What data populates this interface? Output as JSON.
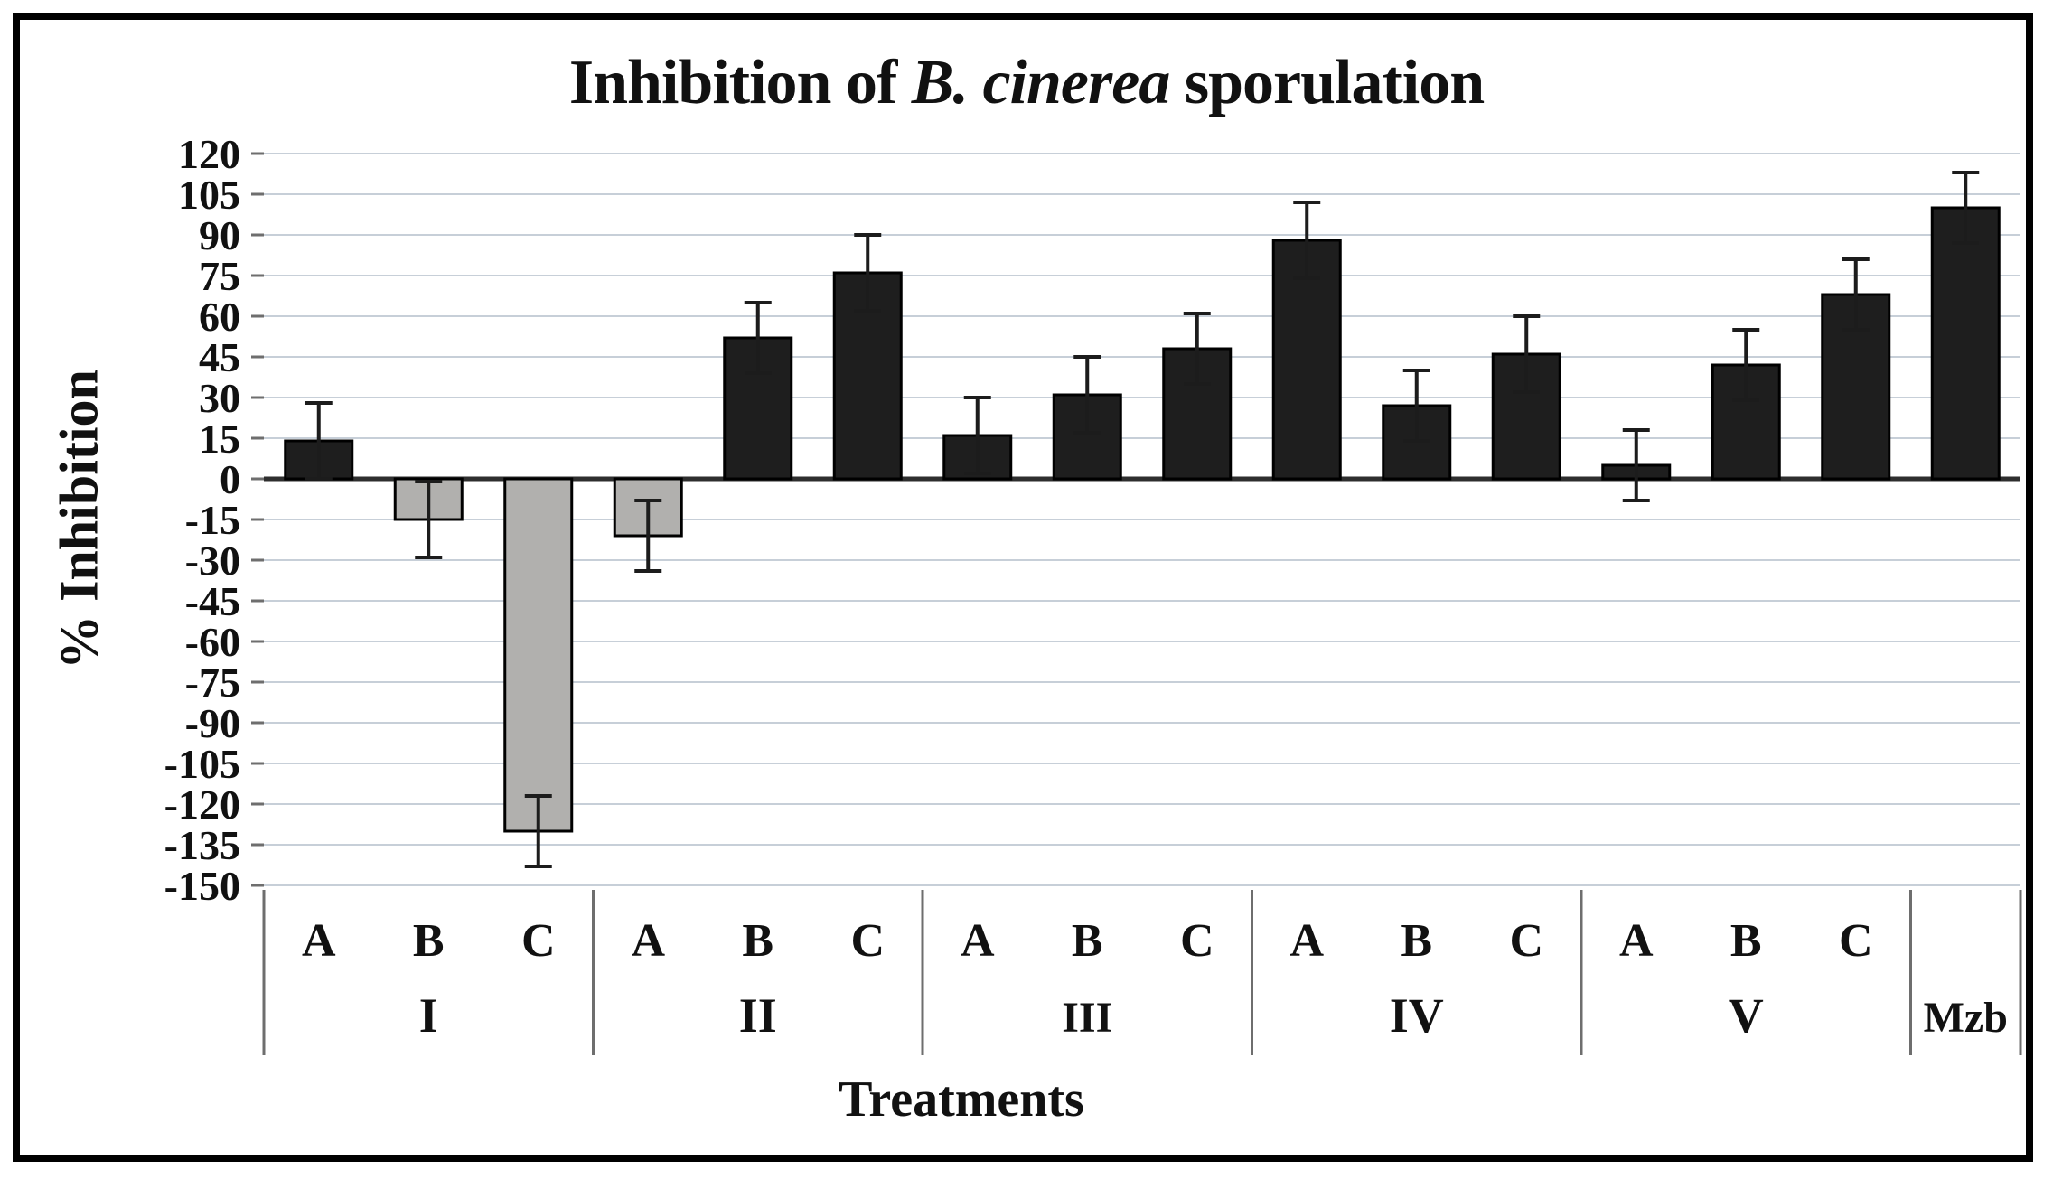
{
  "title": {
    "prefix": "Inhibition of ",
    "italic": "B. cinerea",
    "suffix": " sporulation"
  },
  "chart_data": {
    "type": "bar",
    "title": "Inhibition of B. cinerea sporulation",
    "title_italic_part": "B. cinerea",
    "xlabel": "Treatments",
    "ylabel": "% Inhibition",
    "ylim": [
      -150,
      120
    ],
    "ytick_step": 15,
    "grid": true,
    "legend": false,
    "error_bars": true,
    "groups": [
      {
        "label": "I",
        "bars": [
          {
            "sub": "A",
            "value": 14,
            "error": 14
          },
          {
            "sub": "B",
            "value": -15,
            "error": 14
          },
          {
            "sub": "C",
            "value": -130,
            "error": 13
          }
        ]
      },
      {
        "label": "II",
        "bars": [
          {
            "sub": "A",
            "value": -21,
            "error": 13
          },
          {
            "sub": "B",
            "value": 52,
            "error": 13
          },
          {
            "sub": "C",
            "value": 76,
            "error": 14
          }
        ]
      },
      {
        "label": "III",
        "bars": [
          {
            "sub": "A",
            "value": 16,
            "error": 14
          },
          {
            "sub": "B",
            "value": 31,
            "error": 14
          },
          {
            "sub": "C",
            "value": 48,
            "error": 13
          }
        ]
      },
      {
        "label": "IV",
        "bars": [
          {
            "sub": "A",
            "value": 88,
            "error": 14
          },
          {
            "sub": "B",
            "value": 27,
            "error": 13
          },
          {
            "sub": "C",
            "value": 46,
            "error": 14
          }
        ]
      },
      {
        "label": "V",
        "bars": [
          {
            "sub": "A",
            "value": 5,
            "error": 13
          },
          {
            "sub": "B",
            "value": 42,
            "error": 13
          },
          {
            "sub": "C",
            "value": 68,
            "error": 13
          }
        ]
      },
      {
        "label": "Mzb",
        "bars": [
          {
            "sub": "",
            "value": 100,
            "error": 13
          }
        ]
      }
    ],
    "colors": {
      "positive_bar": "#1e1e1e",
      "negative_bar": "#b1b0ae",
      "bar_outline": "#000000",
      "error_bar": "#1c1c1c",
      "gridline": "#c7cfd8",
      "zero_axis": "#2e2e2e",
      "separator": "#6e6e6e",
      "tick_mark": "#6e6e6e"
    }
  }
}
